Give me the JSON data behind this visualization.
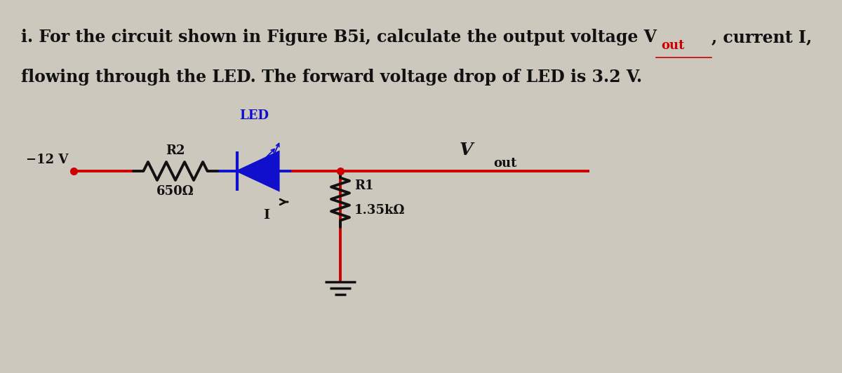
{
  "bg_color": "#cdc8be",
  "text_color": "#111111",
  "red": "#cc0000",
  "blue": "#1010cc",
  "black": "#111111",
  "line1_prefix": "i. For the circuit shown in Figure B5i, calculate the output voltage V",
  "line1_vout_sub": "out",
  "line1_suffix": ", current I,",
  "line2": "flowing through the LED. The forward voltage drop of LED is 3.2 V.",
  "label_neg12v": "−12 V",
  "label_R2": "R2",
  "label_R2val": "650Ω",
  "label_LED": "LED",
  "label_I": "I",
  "label_Vout_V": "V",
  "label_Vout_sub": "out",
  "label_R1": "R1",
  "label_R1val": "1.35kΩ",
  "font_size_body": 17,
  "font_size_circuit": 13,
  "lw_wire": 2.8
}
